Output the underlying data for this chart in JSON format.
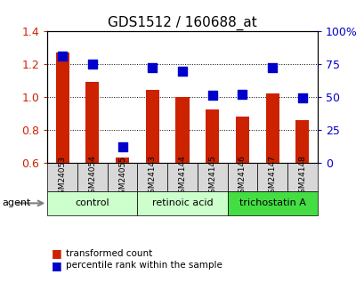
{
  "title": "GDS1512 / 160688_at",
  "samples": [
    "GSM24053",
    "GSM24054",
    "GSM24055",
    "GSM24143",
    "GSM24144",
    "GSM24145",
    "GSM24146",
    "GSM24147",
    "GSM24148"
  ],
  "red_values": [
    1.27,
    1.09,
    0.63,
    1.04,
    1.0,
    0.92,
    0.88,
    1.02,
    0.86
  ],
  "blue_values": [
    0.81,
    0.75,
    0.12,
    0.72,
    0.69,
    0.51,
    0.52,
    0.72,
    0.49
  ],
  "ylim_left": [
    0.6,
    1.4
  ],
  "ylim_right": [
    0.0,
    1.0
  ],
  "yticks_left": [
    0.6,
    0.8,
    1.0,
    1.2,
    1.4
  ],
  "ytick_labels_left": [
    "0.6",
    "0.8",
    "1.0",
    "1.2",
    "1.4"
  ],
  "yticks_right": [
    0.0,
    0.25,
    0.5,
    0.75,
    1.0
  ],
  "ytick_labels_right": [
    "0",
    "25",
    "50",
    "75",
    "100%"
  ],
  "bar_color": "#cc2200",
  "dot_color": "#0000cc",
  "groups": [
    {
      "label": "control",
      "indices": [
        0,
        1,
        2
      ],
      "color": "#ccffcc"
    },
    {
      "label": "retinoic acid",
      "indices": [
        3,
        4,
        5
      ],
      "color": "#ccffcc"
    },
    {
      "label": "trichostatin A",
      "indices": [
        6,
        7,
        8
      ],
      "color": "#44cc44"
    }
  ],
  "agent_label": "agent",
  "legend_red": "transformed count",
  "legend_blue": "percentile rank within the sample",
  "bar_color_gsm_bg": "#d8d8d8",
  "grid_color": "#000000",
  "tick_label_color_left": "#cc2200",
  "tick_label_color_right": "#0000cc",
  "bar_width": 0.45,
  "dot_size": 45
}
